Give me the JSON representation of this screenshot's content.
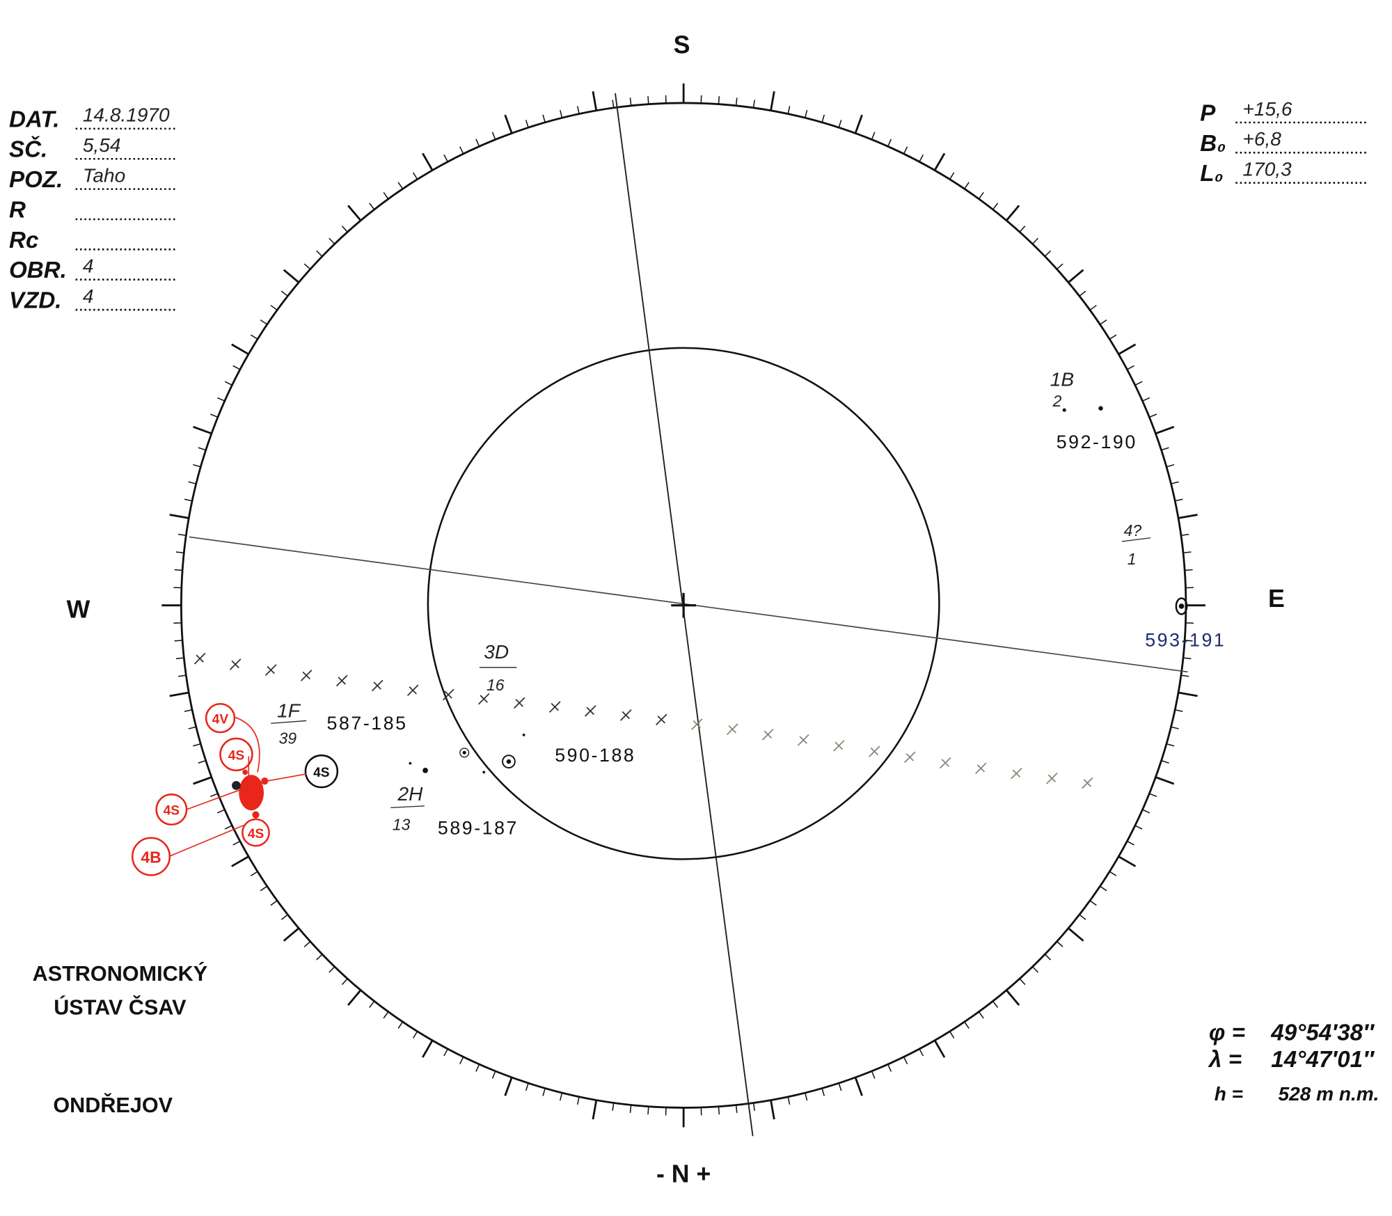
{
  "header_left": {
    "fields": [
      {
        "label": "DAT.",
        "value": "14.8.1970"
      },
      {
        "label": "SČ.",
        "value": "5,54"
      },
      {
        "label": "POZ.",
        "value": "Taho"
      },
      {
        "label": "R"
      },
      {
        "label": "Rc"
      },
      {
        "label": "OBR.",
        "value": "4"
      },
      {
        "label": "VZD.",
        "value": "4"
      }
    ]
  },
  "header_right": {
    "fields": [
      {
        "label": "P",
        "value": "+15,6"
      },
      {
        "label": "B₀",
        "value": "+6,8"
      },
      {
        "label": "L₀",
        "value": "170,3"
      }
    ]
  },
  "compass": {
    "top": "S",
    "left": "W",
    "right": "E",
    "bottom": "- N +"
  },
  "institute": {
    "lines": [
      "ASTRONOMICKÝ",
      "ÚSTAV ČSAV"
    ],
    "place": "ONDŘEJOV"
  },
  "location": {
    "rows": [
      {
        "symbol": "φ =",
        "value": "49°54′38″"
      },
      {
        "symbol": "λ =",
        "value": "14°47′01″"
      },
      {
        "symbol": "h =",
        "value": "528 m n.m."
      }
    ]
  },
  "groups": [
    {
      "label": "587-185",
      "class": "1F",
      "count": "39"
    },
    {
      "label": "590-188",
      "class": "3D",
      "count": "16"
    },
    {
      "label": "589-187",
      "class": "2H",
      "count": "13"
    },
    {
      "label": "592-190",
      "class": "1B",
      "count": "2"
    },
    {
      "label": "593-191",
      "class": "4?",
      "count": "1"
    }
  ],
  "red_labels": [
    "4V",
    "4S",
    "4S",
    "4S",
    "4S",
    "4B"
  ]
}
